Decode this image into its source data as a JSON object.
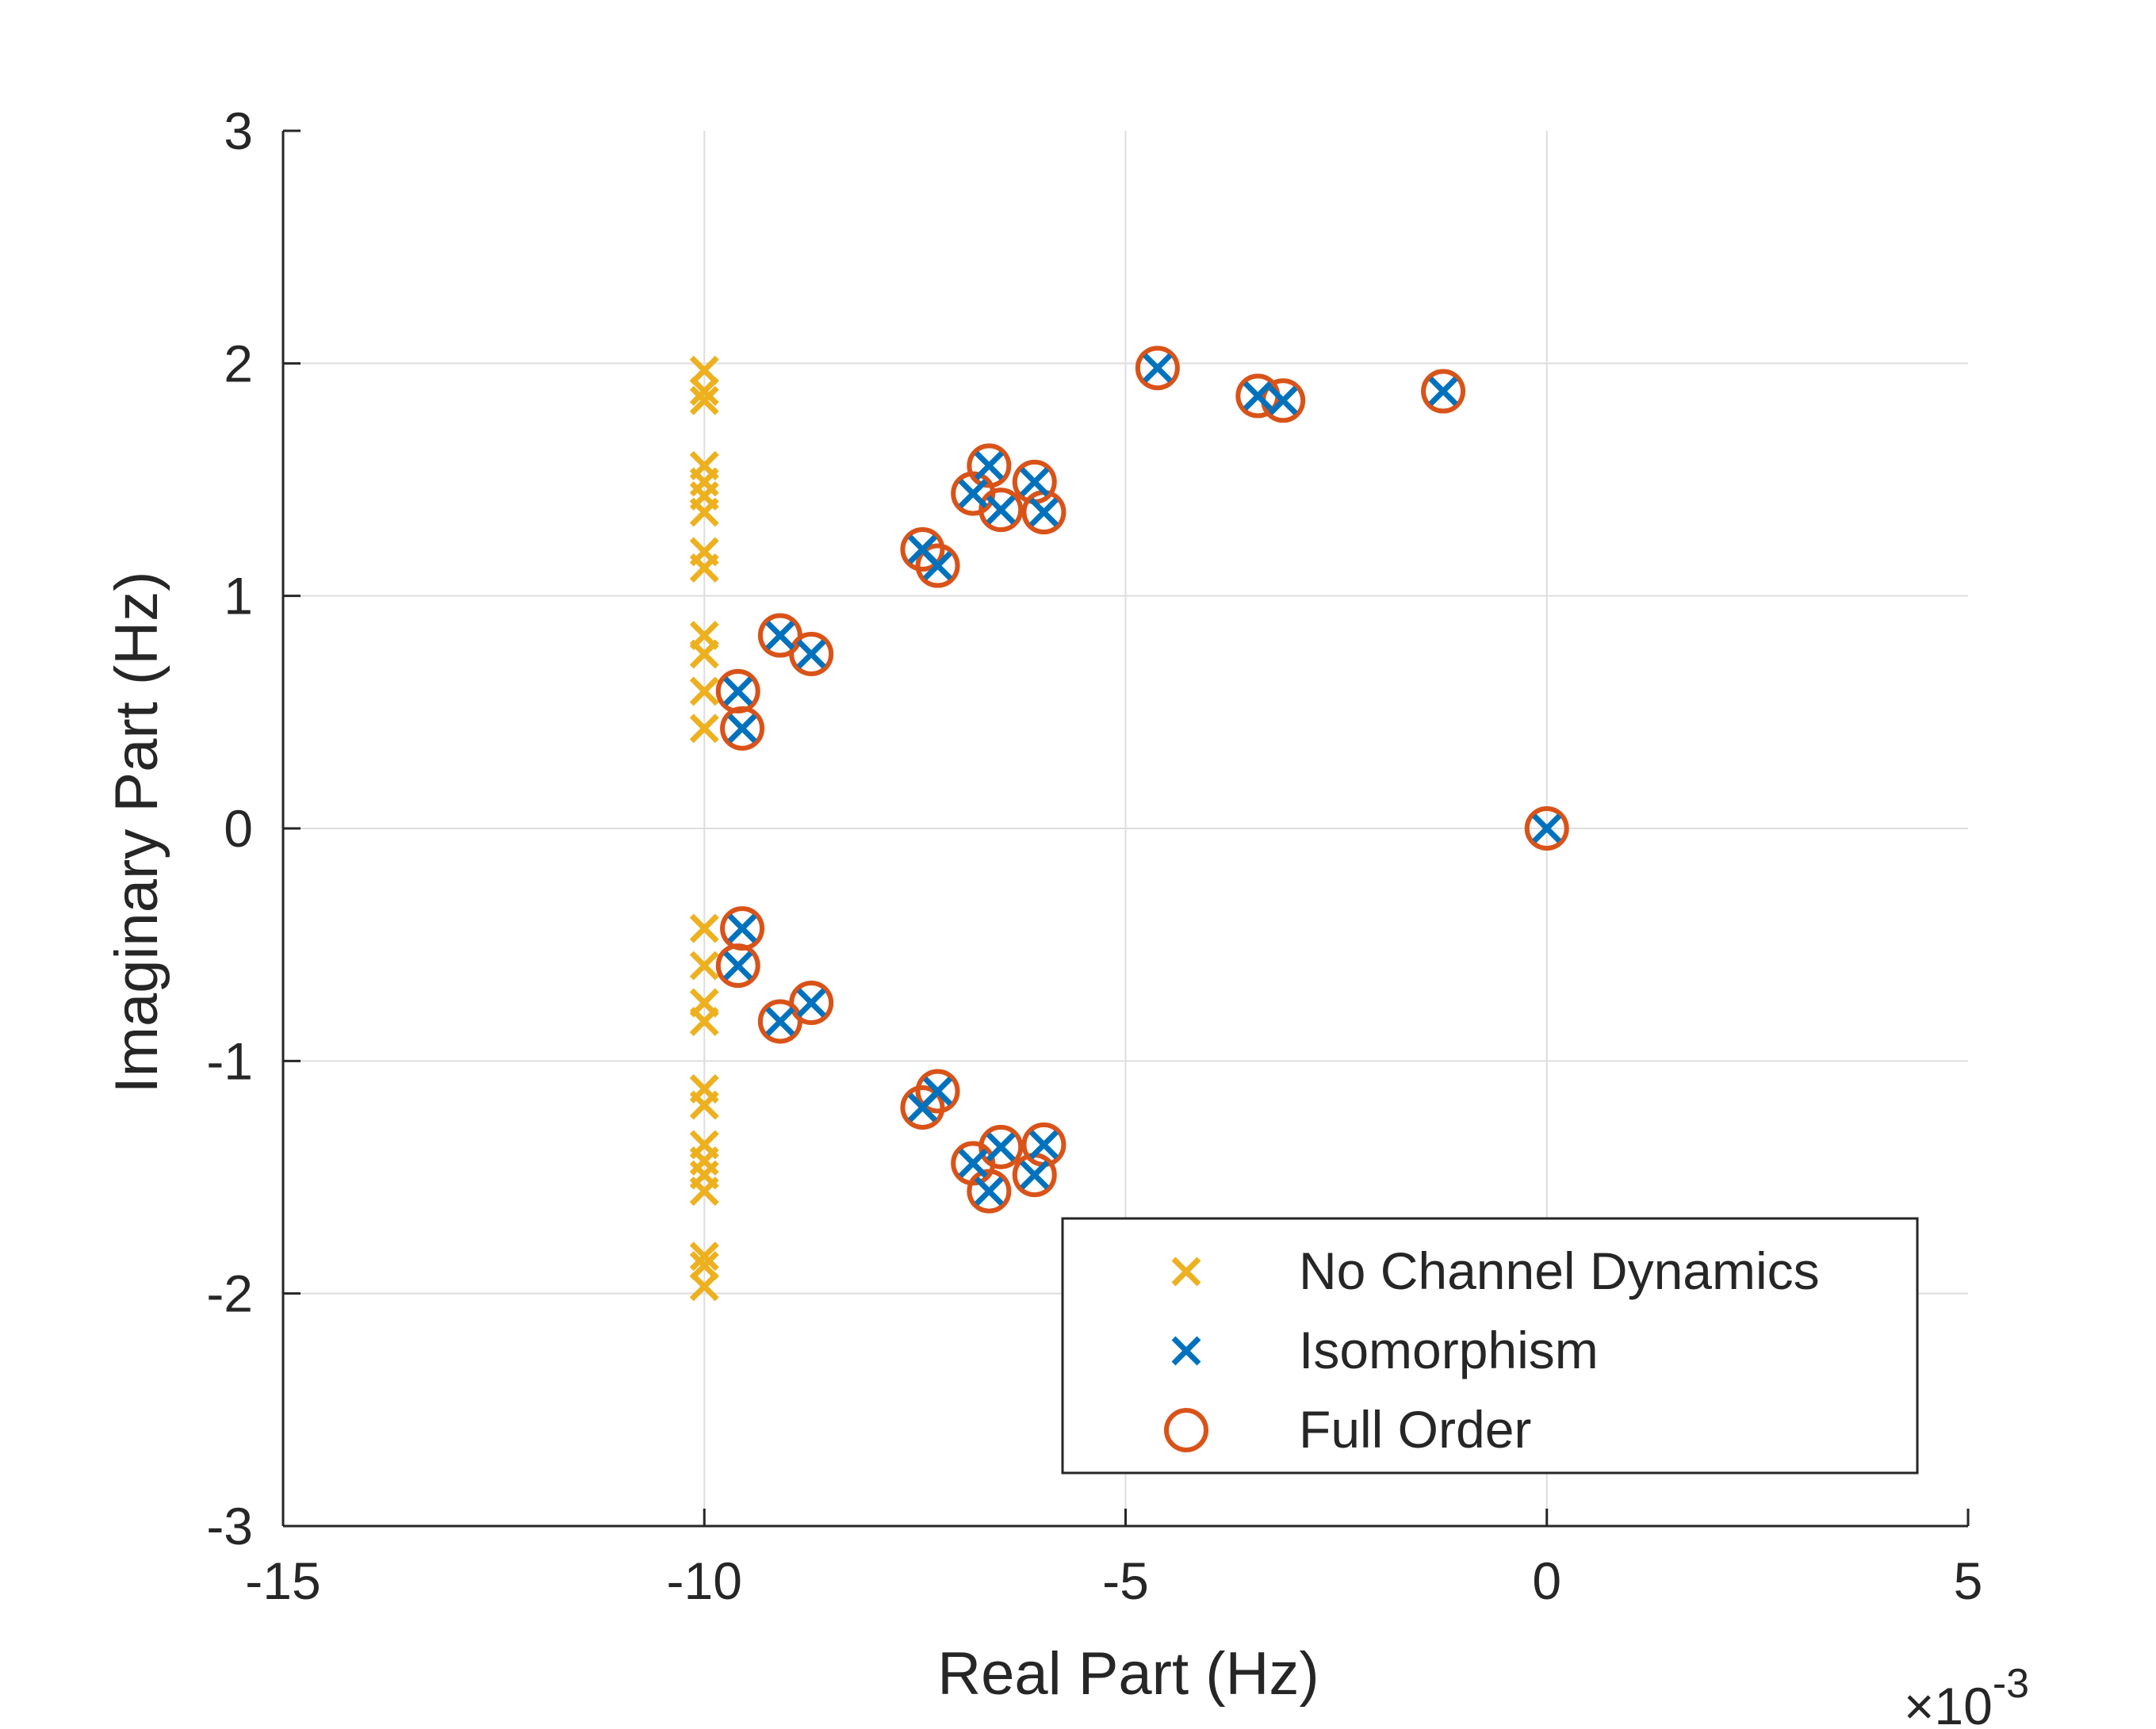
{
  "chart_data": {
    "type": "scatter",
    "title": "",
    "xlabel": "Real Part (Hz)",
    "ylabel": "Imaginary Part (Hz)",
    "x_exponent_label": "×10",
    "x_exponent_power": "-3",
    "xlim": [
      -15,
      5
    ],
    "ylim": [
      -3,
      3
    ],
    "x_ticks": [
      -15,
      -10,
      -5,
      0,
      5
    ],
    "x_tick_labels": [
      "-15",
      "-10",
      "-5",
      "0",
      "5"
    ],
    "y_ticks": [
      -3,
      -2,
      -1,
      0,
      1,
      2,
      3
    ],
    "y_tick_labels": [
      "-3",
      "-2",
      "-1",
      "0",
      "1",
      "2",
      "3"
    ],
    "grid": true,
    "legend_position": "bottom-right",
    "colors": {
      "no_channel": "#EDB120",
      "isomorphism": "#0072BD",
      "full_order": "#D95319",
      "axis": "#262626",
      "grid": "#dedede"
    },
    "series": [
      {
        "name": "No Channel Dynamics",
        "marker": "x",
        "color": "#EDB120",
        "points": [
          [
            -10,
            1.97
          ],
          [
            -10,
            1.88
          ],
          [
            -10,
            1.84
          ],
          [
            -10,
            1.56
          ],
          [
            -10,
            1.49
          ],
          [
            -10,
            1.43
          ],
          [
            -10,
            1.36
          ],
          [
            -10,
            1.19
          ],
          [
            -10,
            1.12
          ],
          [
            -10,
            0.83
          ],
          [
            -10,
            0.75
          ],
          [
            -10,
            0.59
          ],
          [
            -10,
            0.43
          ],
          [
            -10,
            -0.43
          ],
          [
            -10,
            -0.59
          ],
          [
            -10,
            -0.75
          ],
          [
            -10,
            -0.83
          ],
          [
            -10,
            -1.12
          ],
          [
            -10,
            -1.19
          ],
          [
            -10,
            -1.36
          ],
          [
            -10,
            -1.43
          ],
          [
            -10,
            -1.49
          ],
          [
            -10,
            -1.56
          ],
          [
            -10,
            -1.84
          ],
          [
            -10,
            -1.88
          ],
          [
            -10,
            -1.97
          ]
        ]
      },
      {
        "name": "Isomorphism",
        "marker": "x",
        "color": "#0072BD",
        "points": [
          [
            -4.62,
            1.98
          ],
          [
            -3.43,
            1.86
          ],
          [
            -3.13,
            1.84
          ],
          [
            -1.23,
            1.88
          ],
          [
            -6.62,
            1.56
          ],
          [
            -6.08,
            1.49
          ],
          [
            -6.81,
            1.44
          ],
          [
            -6.48,
            1.37
          ],
          [
            -5.97,
            1.36
          ],
          [
            -7.41,
            1.2
          ],
          [
            -7.23,
            1.13
          ],
          [
            -9.1,
            0.83
          ],
          [
            -8.73,
            0.75
          ],
          [
            -9.6,
            0.59
          ],
          [
            -9.55,
            0.43
          ],
          [
            0.0,
            0.0
          ],
          [
            -9.55,
            -0.43
          ],
          [
            -9.6,
            -0.59
          ],
          [
            -8.73,
            -0.75
          ],
          [
            -9.1,
            -0.83
          ],
          [
            -7.23,
            -1.13
          ],
          [
            -7.41,
            -1.2
          ],
          [
            -6.48,
            -1.37
          ],
          [
            -5.97,
            -1.36
          ],
          [
            -6.81,
            -1.44
          ],
          [
            -6.08,
            -1.49
          ],
          [
            -6.62,
            -1.56
          ]
        ]
      },
      {
        "name": "Full Order",
        "marker": "o",
        "color": "#D95319",
        "points": [
          [
            -4.62,
            1.98
          ],
          [
            -3.43,
            1.86
          ],
          [
            -3.13,
            1.84
          ],
          [
            -1.23,
            1.88
          ],
          [
            -6.62,
            1.56
          ],
          [
            -6.08,
            1.49
          ],
          [
            -6.81,
            1.44
          ],
          [
            -6.48,
            1.37
          ],
          [
            -5.97,
            1.36
          ],
          [
            -7.41,
            1.2
          ],
          [
            -7.23,
            1.13
          ],
          [
            -9.1,
            0.83
          ],
          [
            -8.73,
            0.75
          ],
          [
            -9.6,
            0.59
          ],
          [
            -9.55,
            0.43
          ],
          [
            0.0,
            0.0
          ],
          [
            -9.55,
            -0.43
          ],
          [
            -9.6,
            -0.59
          ],
          [
            -8.73,
            -0.75
          ],
          [
            -9.1,
            -0.83
          ],
          [
            -7.23,
            -1.13
          ],
          [
            -7.41,
            -1.2
          ],
          [
            -6.48,
            -1.37
          ],
          [
            -5.97,
            -1.36
          ],
          [
            -6.81,
            -1.44
          ],
          [
            -6.08,
            -1.49
          ],
          [
            -6.62,
            -1.56
          ]
        ]
      }
    ]
  }
}
